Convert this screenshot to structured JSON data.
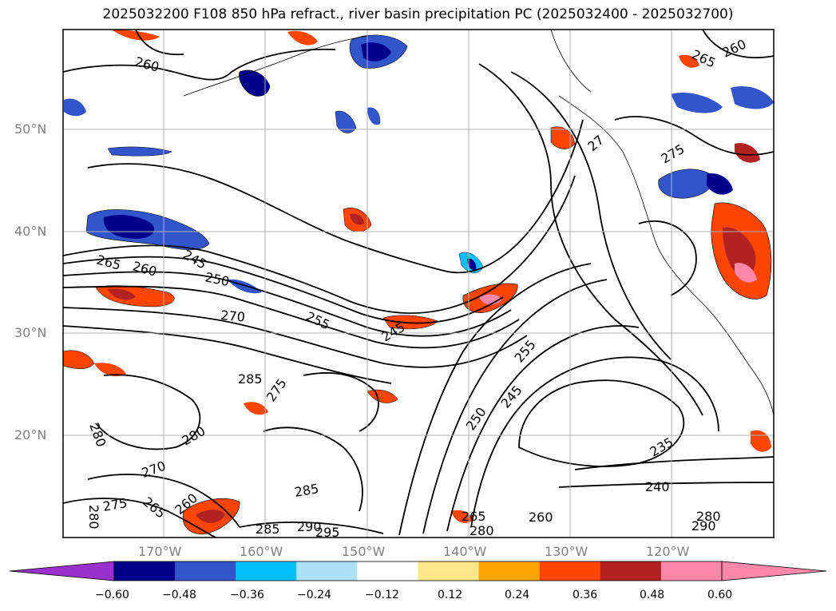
{
  "title": "2025032200 F108 850 hPa refract., river basin precipitation PC (2025032400 - 2025032700)",
  "lat_labels": [
    "50°N",
    "40°N",
    "30°N",
    "20°N"
  ],
  "lon_labels": [
    "170°W",
    "160°W",
    "150°W",
    "140°W",
    "130°W",
    "120°W"
  ],
  "colorbar": {
    "tick_labels": [
      "−0.60",
      "−0.48",
      "−0.36",
      "−0.24",
      "−0.12",
      "0.12",
      "0.24",
      "0.36",
      "0.48",
      "0.60"
    ],
    "under_color": "#9932cc",
    "over_color": "#ff88aa",
    "colors": [
      "#00008b",
      "#3355cc",
      "#00bfff",
      "#aee0f8",
      "#ffffff",
      "#ffe88a",
      "#ffa500",
      "#ff4500",
      "#b22222",
      "#ff88aa"
    ]
  },
  "contour_labels": [
    "260",
    "265",
    "260",
    "245",
    "250",
    "270",
    "255",
    "245",
    "255",
    "245",
    "250",
    "235",
    "240",
    "275",
    "275",
    "285",
    "280",
    "270",
    "280",
    "275",
    "265",
    "260",
    "285",
    "285",
    "290",
    "295",
    "265",
    "280",
    "260",
    "280",
    "290",
    "280",
    "265",
    "260",
    "27"
  ]
}
